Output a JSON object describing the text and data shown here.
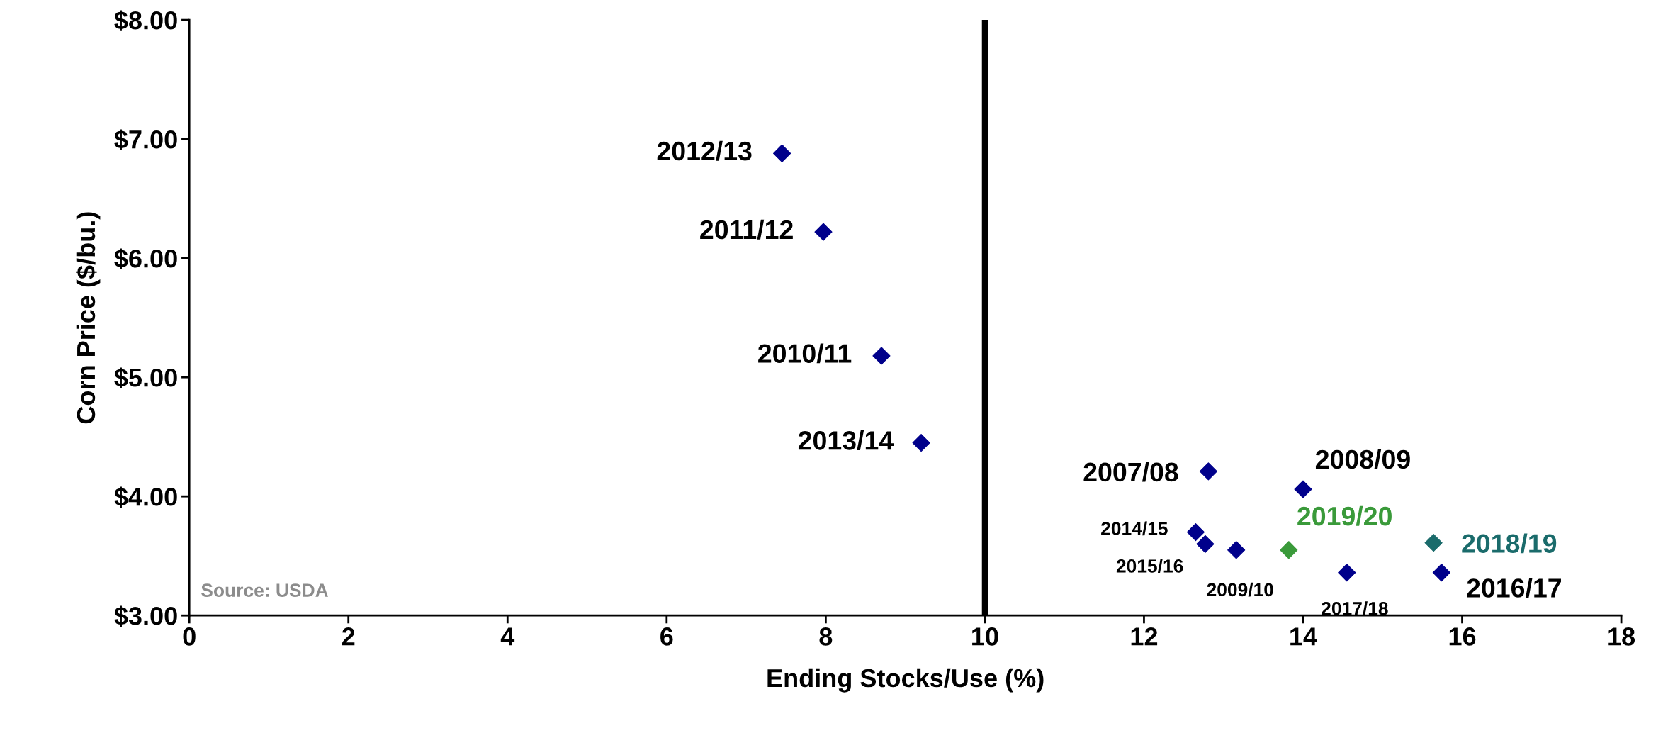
{
  "chart_data": {
    "type": "scatter",
    "xlabel": "Ending Stocks/Use (%)",
    "ylabel": "Corn Price ($/bu.)",
    "xlim": [
      0,
      18
    ],
    "xticks": [
      0,
      2,
      4,
      6,
      8,
      10,
      12,
      14,
      16,
      18
    ],
    "ylim": [
      3,
      8
    ],
    "yticks": [
      {
        "value": 3,
        "label": "$3.00"
      },
      {
        "value": 4,
        "label": "$4.00"
      },
      {
        "value": 5,
        "label": "$5.00"
      },
      {
        "value": 6,
        "label": "$6.00"
      },
      {
        "value": 7,
        "label": "$7.00"
      },
      {
        "value": 8,
        "label": "$8.00"
      }
    ],
    "marker": "diamond",
    "grid": false,
    "legend": false,
    "series": [
      {
        "color": "#00008b",
        "x": [
          7.45,
          7.97,
          8.7,
          9.2,
          12.81,
          14.0,
          12.65,
          12.77,
          13.16,
          13.82,
          14.55,
          15.64,
          15.74
        ],
        "values": [
          6.88,
          6.22,
          5.18,
          4.45,
          4.21,
          4.06,
          3.7,
          3.6,
          3.55,
          3.55,
          3.36,
          3.61,
          3.36
        ],
        "colors": [
          "#00008b",
          "#00008b",
          "#00008b",
          "#00008b",
          "#00008b",
          "#00008b",
          "#00008b",
          "#00008b",
          "#00008b",
          "#3a9a3a",
          "#00008b",
          "#1a6b6b",
          "#00008b"
        ]
      }
    ],
    "ref_lines": [
      {
        "axis": "x",
        "value": 10,
        "color": "#000000",
        "line_style": "solid"
      }
    ],
    "annotations": [
      {
        "text": "2012/13",
        "x": 7.45,
        "y": 6.88
      },
      {
        "text": "2011/12",
        "x": 7.97,
        "y": 6.22
      },
      {
        "text": "2010/11",
        "x": 8.7,
        "y": 5.18
      },
      {
        "text": "2013/14",
        "x": 9.2,
        "y": 4.45
      },
      {
        "text": "2007/08",
        "x": 12.81,
        "y": 4.21
      },
      {
        "text": "2008/09",
        "x": 14.0,
        "y": 4.06
      },
      {
        "text": "2014/15",
        "x": 12.65,
        "y": 3.7
      },
      {
        "text": "2015/16",
        "x": 12.77,
        "y": 3.6
      },
      {
        "text": "2009/10",
        "x": 13.16,
        "y": 3.55
      },
      {
        "text": "2019/20",
        "x": 13.82,
        "y": 3.55
      },
      {
        "text": "2017/18",
        "x": 14.55,
        "y": 3.36
      },
      {
        "text": "2018/19",
        "x": 15.64,
        "y": 3.61
      },
      {
        "text": "2016/17",
        "x": 15.74,
        "y": 3.36
      },
      "Source: USDA"
    ]
  }
}
